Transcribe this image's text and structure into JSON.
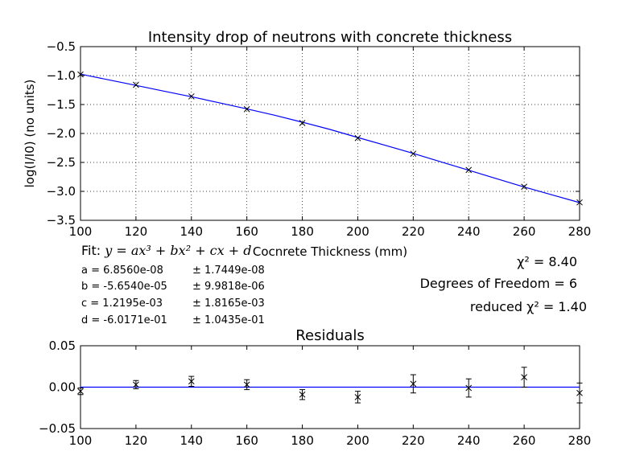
{
  "colors": {
    "fit_line": "#0000ff",
    "markers": "#000000",
    "grid": "#000000"
  },
  "chart_data": [
    {
      "type": "line",
      "title": "Intensity drop of neutrons with concrete thickness",
      "xlabel": "Cocnrete Thickness (mm)",
      "ylabel": "log(I/I0) (no units)",
      "xlim": [
        100,
        280
      ],
      "ylim": [
        -3.5,
        -0.5
      ],
      "xticks": [
        "100",
        "120",
        "140",
        "160",
        "180",
        "200",
        "220",
        "240",
        "260",
        "280"
      ],
      "yticks": [
        "−3.5",
        "−3.0",
        "−2.5",
        "−2.0",
        "−1.5",
        "−1.0",
        "−0.5"
      ],
      "grid": true,
      "series": [
        {
          "marker": "x",
          "x": [
            100,
            120,
            140,
            160,
            180,
            200,
            220,
            240,
            260,
            280
          ],
          "y": [
            -0.98,
            -1.16,
            -1.36,
            -1.58,
            -1.82,
            -2.08,
            -2.35,
            -2.63,
            -2.92,
            -3.19
          ]
        },
        {
          "marker": "line",
          "x": [
            100,
            110,
            120,
            130,
            140,
            150,
            160,
            170,
            180,
            190,
            200,
            210,
            220,
            230,
            240,
            250,
            260,
            270,
            280
          ],
          "y": [
            -0.975,
            -1.072,
            -1.17,
            -1.268,
            -1.365,
            -1.47,
            -1.575,
            -1.685,
            -1.805,
            -1.93,
            -2.07,
            -2.205,
            -2.345,
            -2.49,
            -2.635,
            -2.78,
            -2.925,
            -3.06,
            -3.195
          ]
        }
      ]
    },
    {
      "type": "scatter",
      "title": "Residuals",
      "xlim": [
        100,
        280
      ],
      "ylim": [
        -0.05,
        0.05
      ],
      "xticks": [
        "100",
        "120",
        "140",
        "160",
        "180",
        "200",
        "220",
        "240",
        "260",
        "280"
      ],
      "yticks": [
        "−0.05",
        "0.00",
        "0.05"
      ],
      "baseline": 0,
      "series": [
        {
          "marker": "x",
          "x": [
            100,
            120,
            140,
            160,
            180,
            200,
            220,
            240,
            260,
            280
          ],
          "y": [
            -0.005,
            0.003,
            0.007,
            0.003,
            -0.009,
            -0.012,
            0.004,
            -0.001,
            0.012,
            -0.007
          ],
          "err": [
            0.004,
            0.005,
            0.006,
            0.006,
            0.006,
            0.007,
            0.011,
            0.011,
            0.012,
            0.012
          ]
        }
      ]
    }
  ],
  "fit": {
    "label": "Fit:",
    "equation": "y = ax³ + bx² + cx + d",
    "params": [
      {
        "name": "a = 6.8560e-08",
        "err": "± 1.7449e-08"
      },
      {
        "name": "b = -5.6540e-05",
        "err": "± 9.9818e-06"
      },
      {
        "name": "c = 1.2195e-03",
        "err": "± 1.8165e-03"
      },
      {
        "name": "d = -6.0171e-01",
        "err": "± 1.0435e-01"
      }
    ],
    "chi2": "χ² = 8.40",
    "dof": "Degrees of Freedom = 6",
    "reduced_chi2": "reduced χ² = 1.40"
  }
}
